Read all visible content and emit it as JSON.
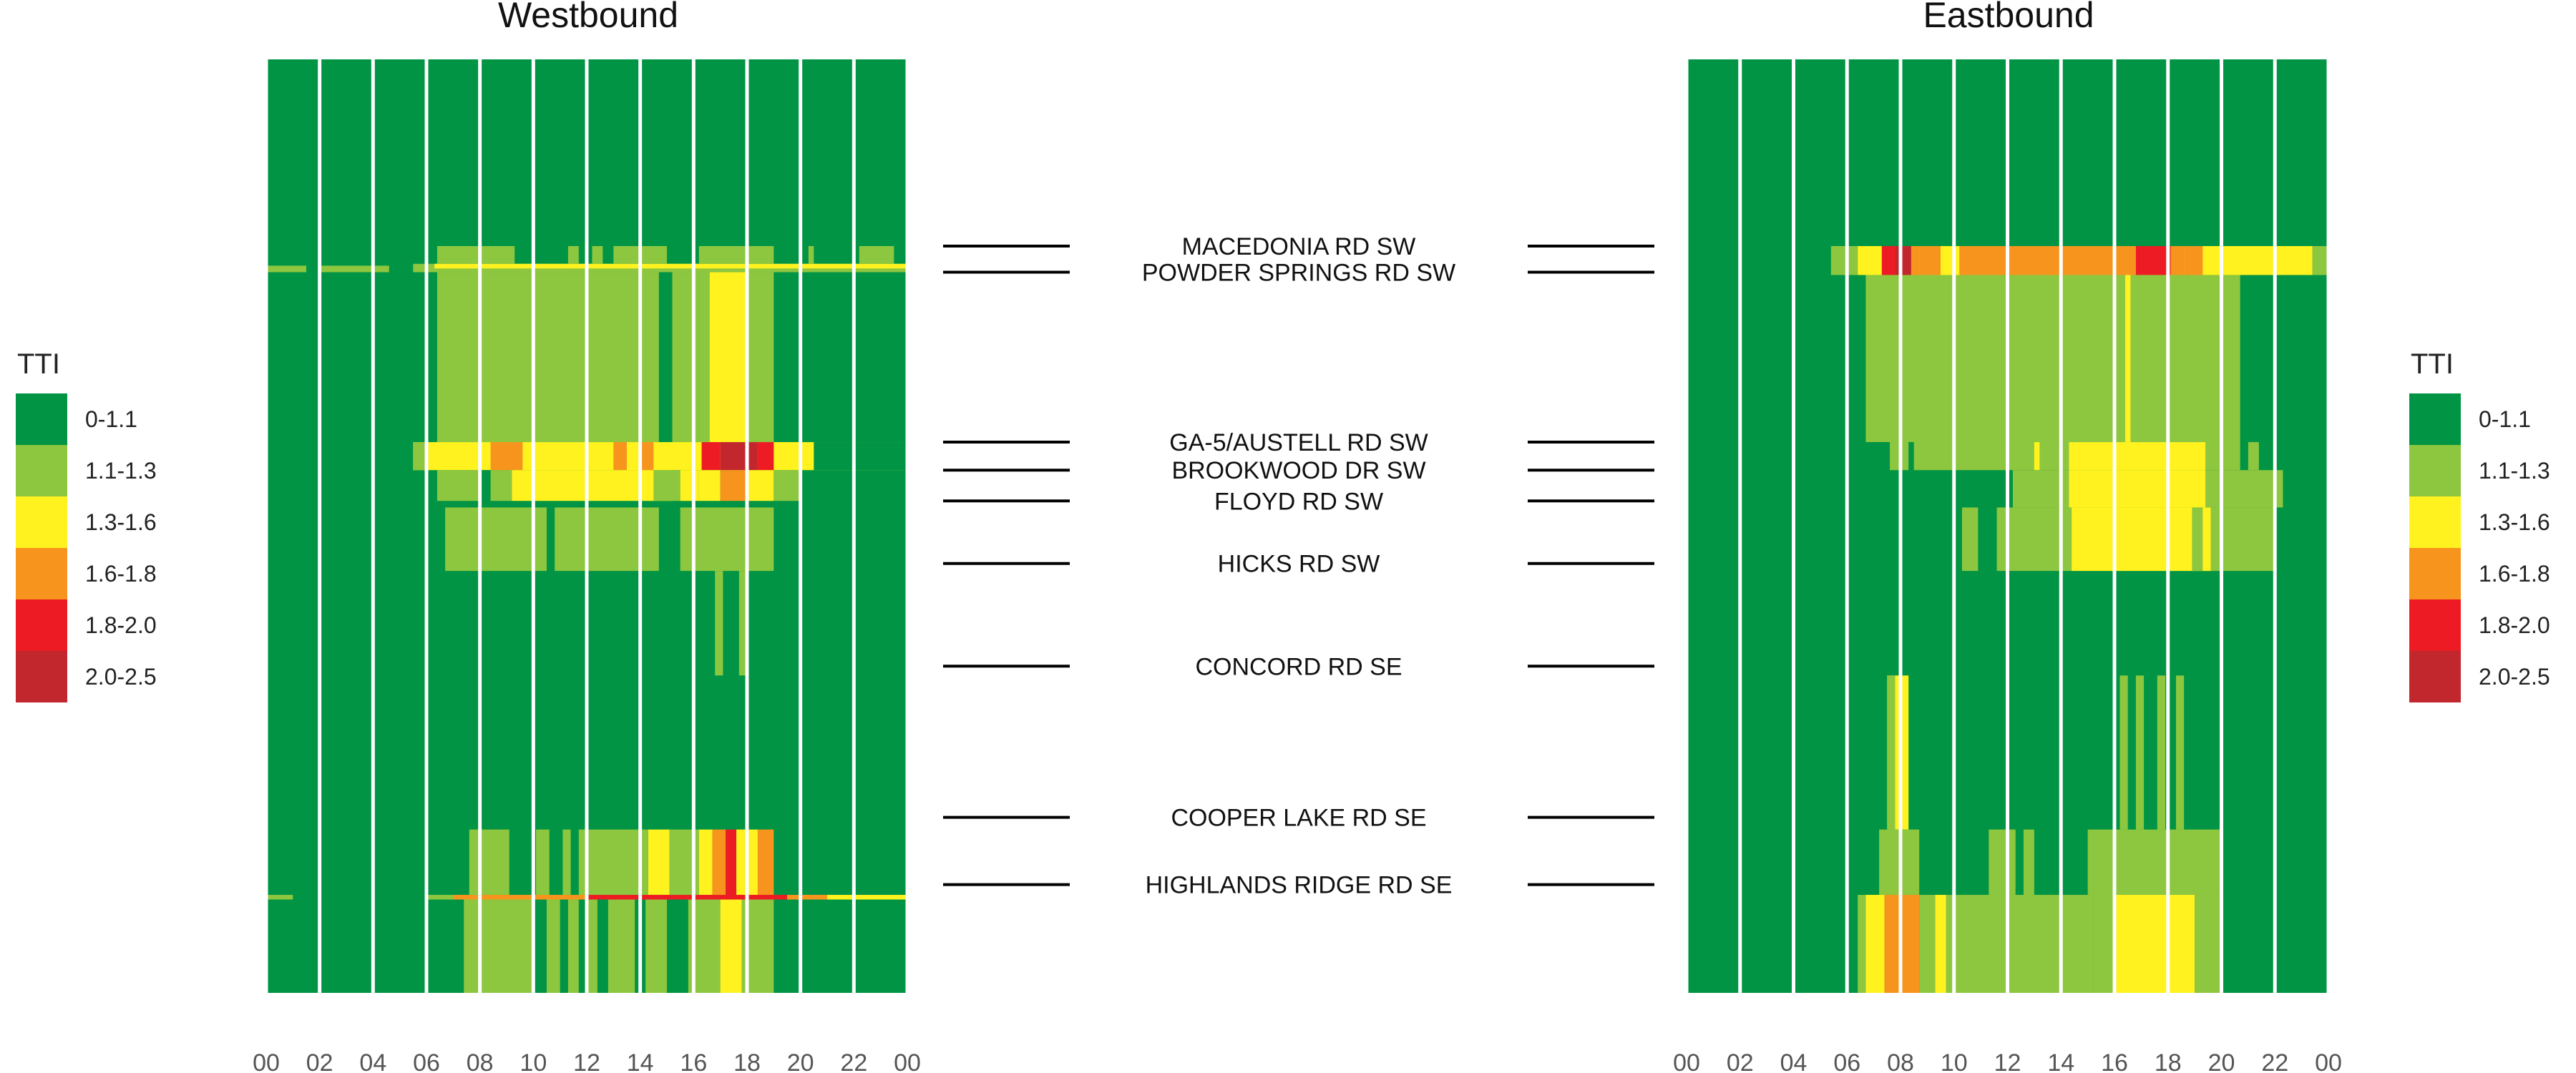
{
  "chart_data": {
    "type": "heatmap",
    "legend": {
      "title": "TTI",
      "classes": [
        {
          "label": "0-1.1",
          "color": "#009444"
        },
        {
          "label": "1.1-1.3",
          "color": "#8DC63F"
        },
        {
          "label": "1.3-1.6",
          "color": "#FFF21F"
        },
        {
          "label": "1.6-1.8",
          "color": "#F7941D"
        },
        {
          "label": "1.8-2.0",
          "color": "#ED1C24"
        },
        {
          "label": "2.0-2.5",
          "color": "#C1272D"
        }
      ]
    },
    "x_ticks": [
      "00",
      "02",
      "04",
      "06",
      "08",
      "10",
      "12",
      "14",
      "16",
      "18",
      "20",
      "22",
      "00"
    ],
    "x_range_hours": [
      0,
      24
    ],
    "roads": [
      "MACEDONIA RD SW",
      "POWDER SPRINGS RD SW",
      "GA-5/AUSTELL RD SW",
      "BROOKWOOD DR SW",
      "FLOYD RD SW",
      "HICKS RD SW",
      "CONCORD RD SE",
      "COOPER LAKE RD SE",
      "HIGHLANDS RIDGE RD SE"
    ],
    "panels": [
      {
        "title": "Westbound",
        "background_class": 0,
        "cells": [
          {
            "h0": 0,
            "h1": 1.5,
            "p0": 0.221,
            "p1": 0.228,
            "c": 1
          },
          {
            "h0": 2,
            "h1": 4.6,
            "p0": 0.221,
            "p1": 0.228,
            "c": 1
          },
          {
            "h0": 5.5,
            "h1": 24,
            "p0": 0.219,
            "p1": 0.228,
            "c": 1
          },
          {
            "h0": 6.3,
            "h1": 24,
            "p0": 0.219,
            "p1": 0.224,
            "c": 2
          },
          {
            "h0": 6.4,
            "h1": 8,
            "p0": 0.2,
            "p1": 0.219,
            "c": 1
          },
          {
            "h0": 8,
            "h1": 9.3,
            "p0": 0.2,
            "p1": 0.219,
            "c": 1
          },
          {
            "h0": 11.3,
            "h1": 11.7,
            "p0": 0.2,
            "p1": 0.219,
            "c": 1
          },
          {
            "h0": 12.2,
            "h1": 12.6,
            "p0": 0.2,
            "p1": 0.219,
            "c": 1
          },
          {
            "h0": 13,
            "h1": 15,
            "p0": 0.2,
            "p1": 0.219,
            "c": 1
          },
          {
            "h0": 16.2,
            "h1": 19,
            "p0": 0.2,
            "p1": 0.219,
            "c": 1
          },
          {
            "h0": 20.3,
            "h1": 20.5,
            "p0": 0.2,
            "p1": 0.219,
            "c": 1
          },
          {
            "h0": 22.2,
            "h1": 23.5,
            "p0": 0.2,
            "p1": 0.219,
            "c": 1
          },
          {
            "h0": 6.4,
            "h1": 14.7,
            "p0": 0.228,
            "p1": 0.41,
            "c": 1
          },
          {
            "h0": 15.2,
            "h1": 16.2,
            "p0": 0.228,
            "p1": 0.41,
            "c": 1
          },
          {
            "h0": 16.2,
            "h1": 16.6,
            "p0": 0.228,
            "p1": 0.41,
            "c": 1
          },
          {
            "h0": 16.6,
            "h1": 18,
            "p0": 0.228,
            "p1": 0.41,
            "c": 2
          },
          {
            "h0": 18,
            "h1": 19,
            "p0": 0.228,
            "p1": 0.41,
            "c": 1
          },
          {
            "h0": 5.5,
            "h1": 24,
            "p0": 0.41,
            "p1": 0.44,
            "c": 2
          },
          {
            "h0": 5.5,
            "h1": 6,
            "p0": 0.41,
            "p1": 0.44,
            "c": 1
          },
          {
            "h0": 8.4,
            "h1": 9.6,
            "p0": 0.41,
            "p1": 0.44,
            "c": 3
          },
          {
            "h0": 13,
            "h1": 13.5,
            "p0": 0.41,
            "p1": 0.44,
            "c": 3
          },
          {
            "h0": 13.5,
            "h1": 14,
            "p0": 0.41,
            "p1": 0.44,
            "c": 2
          },
          {
            "h0": 14,
            "h1": 14.5,
            "p0": 0.41,
            "p1": 0.44,
            "c": 3
          },
          {
            "h0": 16.3,
            "h1": 17,
            "p0": 0.41,
            "p1": 0.44,
            "c": 4
          },
          {
            "h0": 17,
            "h1": 18.4,
            "p0": 0.41,
            "p1": 0.44,
            "c": 5
          },
          {
            "h0": 18.4,
            "h1": 19,
            "p0": 0.41,
            "p1": 0.44,
            "c": 4
          },
          {
            "h0": 20.5,
            "h1": 24,
            "p0": 0.41,
            "p1": 0.44,
            "c": 0
          },
          {
            "h0": 6.4,
            "h1": 8,
            "p0": 0.44,
            "p1": 0.473,
            "c": 1
          },
          {
            "h0": 8,
            "h1": 8.4,
            "p0": 0.44,
            "p1": 0.473,
            "c": 0
          },
          {
            "h0": 8.4,
            "h1": 9.2,
            "p0": 0.44,
            "p1": 0.473,
            "c": 1
          },
          {
            "h0": 9.2,
            "h1": 15.2,
            "p0": 0.44,
            "p1": 0.473,
            "c": 2
          },
          {
            "h0": 14.5,
            "h1": 15.5,
            "p0": 0.44,
            "p1": 0.473,
            "c": 1
          },
          {
            "h0": 15.5,
            "h1": 16.2,
            "p0": 0.44,
            "p1": 0.473,
            "c": 2
          },
          {
            "h0": 16.2,
            "h1": 17,
            "p0": 0.44,
            "p1": 0.473,
            "c": 2
          },
          {
            "h0": 17,
            "h1": 18,
            "p0": 0.44,
            "p1": 0.473,
            "c": 3
          },
          {
            "h0": 18,
            "h1": 19,
            "p0": 0.44,
            "p1": 0.473,
            "c": 2
          },
          {
            "h0": 19,
            "h1": 20,
            "p0": 0.44,
            "p1": 0.473,
            "c": 1
          },
          {
            "h0": 6.7,
            "h1": 10.5,
            "p0": 0.48,
            "p1": 0.548,
            "c": 1
          },
          {
            "h0": 10.8,
            "h1": 14.7,
            "p0": 0.48,
            "p1": 0.548,
            "c": 1
          },
          {
            "h0": 15.5,
            "h1": 19,
            "p0": 0.48,
            "p1": 0.548,
            "c": 1
          },
          {
            "h0": 16.8,
            "h1": 17.1,
            "p0": 0.548,
            "p1": 0.66,
            "c": 1
          },
          {
            "h0": 17.7,
            "h1": 18,
            "p0": 0.548,
            "p1": 0.66,
            "c": 1
          },
          {
            "h0": 7.6,
            "h1": 9.1,
            "p0": 0.825,
            "p1": 0.895,
            "c": 1
          },
          {
            "h0": 10.1,
            "h1": 10.6,
            "p0": 0.825,
            "p1": 0.895,
            "c": 1
          },
          {
            "h0": 11.1,
            "h1": 11.4,
            "p0": 0.825,
            "p1": 0.895,
            "c": 1
          },
          {
            "h0": 11.7,
            "h1": 14.3,
            "p0": 0.825,
            "p1": 0.895,
            "c": 1
          },
          {
            "h0": 14.3,
            "h1": 15.1,
            "p0": 0.825,
            "p1": 0.895,
            "c": 2
          },
          {
            "h0": 15.1,
            "h1": 16.2,
            "p0": 0.825,
            "p1": 0.895,
            "c": 1
          },
          {
            "h0": 16.2,
            "h1": 16.7,
            "p0": 0.825,
            "p1": 0.895,
            "c": 2
          },
          {
            "h0": 16.7,
            "h1": 17.2,
            "p0": 0.825,
            "p1": 0.895,
            "c": 3
          },
          {
            "h0": 17.2,
            "h1": 17.6,
            "p0": 0.825,
            "p1": 0.895,
            "c": 4
          },
          {
            "h0": 17.6,
            "h1": 18.4,
            "p0": 0.825,
            "p1": 0.895,
            "c": 2
          },
          {
            "h0": 18.4,
            "h1": 19,
            "p0": 0.825,
            "p1": 0.895,
            "c": 3
          },
          {
            "h0": 0,
            "h1": 1,
            "p0": 0.895,
            "p1": 0.9,
            "c": 1
          },
          {
            "h0": 6,
            "h1": 24,
            "p0": 0.895,
            "p1": 0.9,
            "c": 1
          },
          {
            "h0": 7,
            "h1": 15,
            "p0": 0.895,
            "p1": 0.9,
            "c": 3
          },
          {
            "h0": 12,
            "h1": 19.5,
            "p0": 0.895,
            "p1": 0.9,
            "c": 4
          },
          {
            "h0": 19.5,
            "h1": 21,
            "p0": 0.895,
            "p1": 0.9,
            "c": 3
          },
          {
            "h0": 21,
            "h1": 24,
            "p0": 0.895,
            "p1": 0.9,
            "c": 2
          },
          {
            "h0": 7.4,
            "h1": 10,
            "p0": 0.9,
            "p1": 1.0,
            "c": 1
          },
          {
            "h0": 10.5,
            "h1": 11,
            "p0": 0.9,
            "p1": 1.0,
            "c": 1
          },
          {
            "h0": 11.3,
            "h1": 11.7,
            "p0": 0.9,
            "p1": 1.0,
            "c": 1
          },
          {
            "h0": 12,
            "h1": 12.4,
            "p0": 0.9,
            "p1": 1.0,
            "c": 1
          },
          {
            "h0": 12.8,
            "h1": 13.8,
            "p0": 0.9,
            "p1": 1.0,
            "c": 1
          },
          {
            "h0": 14.2,
            "h1": 15,
            "p0": 0.9,
            "p1": 1.0,
            "c": 1
          },
          {
            "h0": 15.8,
            "h1": 17,
            "p0": 0.9,
            "p1": 1.0,
            "c": 1
          },
          {
            "h0": 17,
            "h1": 17.8,
            "p0": 0.9,
            "p1": 1.0,
            "c": 2
          },
          {
            "h0": 17.8,
            "h1": 19,
            "p0": 0.9,
            "p1": 1.0,
            "c": 1
          }
        ]
      },
      {
        "title": "Eastbound",
        "background_class": 0,
        "cells": [
          {
            "h0": 5.4,
            "h1": 6.4,
            "p0": 0.2,
            "p1": 0.231,
            "c": 1
          },
          {
            "h0": 6.4,
            "h1": 23.4,
            "p0": 0.2,
            "p1": 0.231,
            "c": 2
          },
          {
            "h0": 7.3,
            "h1": 7.8,
            "p0": 0.2,
            "p1": 0.231,
            "c": 4
          },
          {
            "h0": 7.8,
            "h1": 8.4,
            "p0": 0.2,
            "p1": 0.231,
            "c": 5
          },
          {
            "h0": 8.4,
            "h1": 8.7,
            "p0": 0.2,
            "p1": 0.231,
            "c": 3
          },
          {
            "h0": 8.7,
            "h1": 9.5,
            "p0": 0.2,
            "p1": 0.231,
            "c": 3
          },
          {
            "h0": 9.5,
            "h1": 10.2,
            "p0": 0.2,
            "p1": 0.231,
            "c": 2
          },
          {
            "h0": 10.2,
            "h1": 16.8,
            "p0": 0.2,
            "p1": 0.231,
            "c": 3
          },
          {
            "h0": 16.8,
            "h1": 18.1,
            "p0": 0.2,
            "p1": 0.231,
            "c": 4
          },
          {
            "h0": 18.1,
            "h1": 18.6,
            "p0": 0.2,
            "p1": 0.231,
            "c": 3
          },
          {
            "h0": 18.6,
            "h1": 19.3,
            "p0": 0.2,
            "p1": 0.231,
            "c": 3
          },
          {
            "h0": 23.4,
            "h1": 24,
            "p0": 0.2,
            "p1": 0.231,
            "c": 1
          },
          {
            "h0": 6.7,
            "h1": 20.7,
            "p0": 0.231,
            "p1": 0.41,
            "c": 1
          },
          {
            "h0": 16.4,
            "h1": 16.6,
            "p0": 0.231,
            "p1": 0.41,
            "c": 2
          },
          {
            "h0": 6.7,
            "h1": 7.9,
            "p0": 0.41,
            "p1": 0.44,
            "c": 0
          },
          {
            "h0": 7.6,
            "h1": 8.3,
            "p0": 0.41,
            "p1": 0.44,
            "c": 1
          },
          {
            "h0": 8.5,
            "h1": 20.7,
            "p0": 0.41,
            "p1": 0.44,
            "c": 1
          },
          {
            "h0": 13,
            "h1": 13.2,
            "p0": 0.41,
            "p1": 0.44,
            "c": 2
          },
          {
            "h0": 14.3,
            "h1": 19.4,
            "p0": 0.41,
            "p1": 0.44,
            "c": 2
          },
          {
            "h0": 21,
            "h1": 21.4,
            "p0": 0.41,
            "p1": 0.44,
            "c": 1
          },
          {
            "h0": 12.2,
            "h1": 20,
            "p0": 0.44,
            "p1": 0.48,
            "c": 1
          },
          {
            "h0": 14.3,
            "h1": 19.4,
            "p0": 0.44,
            "p1": 0.48,
            "c": 2
          },
          {
            "h0": 20,
            "h1": 22.3,
            "p0": 0.44,
            "p1": 0.48,
            "c": 1
          },
          {
            "h0": 10.3,
            "h1": 10.9,
            "p0": 0.48,
            "p1": 0.548,
            "c": 1
          },
          {
            "h0": 11.6,
            "h1": 22,
            "p0": 0.48,
            "p1": 0.548,
            "c": 1
          },
          {
            "h0": 14.4,
            "h1": 19.6,
            "p0": 0.48,
            "p1": 0.548,
            "c": 2
          },
          {
            "h0": 18.9,
            "h1": 19.3,
            "p0": 0.48,
            "p1": 0.548,
            "c": 1
          },
          {
            "h0": 7.5,
            "h1": 8.3,
            "p0": 0.66,
            "p1": 0.825,
            "c": 2
          },
          {
            "h0": 7.5,
            "h1": 7.8,
            "p0": 0.66,
            "p1": 0.825,
            "c": 1
          },
          {
            "h0": 16.2,
            "h1": 16.5,
            "p0": 0.66,
            "p1": 0.825,
            "c": 1
          },
          {
            "h0": 16.8,
            "h1": 17.1,
            "p0": 0.66,
            "p1": 0.825,
            "c": 1
          },
          {
            "h0": 17.6,
            "h1": 17.9,
            "p0": 0.66,
            "p1": 0.825,
            "c": 1
          },
          {
            "h0": 18.3,
            "h1": 18.6,
            "p0": 0.66,
            "p1": 0.825,
            "c": 1
          },
          {
            "h0": 7.2,
            "h1": 8.7,
            "p0": 0.825,
            "p1": 0.895,
            "c": 1
          },
          {
            "h0": 11.3,
            "h1": 12.3,
            "p0": 0.825,
            "p1": 0.895,
            "c": 1
          },
          {
            "h0": 12.6,
            "h1": 13,
            "p0": 0.825,
            "p1": 0.895,
            "c": 1
          },
          {
            "h0": 15,
            "h1": 20,
            "p0": 0.825,
            "p1": 0.895,
            "c": 1
          },
          {
            "h0": 6.4,
            "h1": 6.7,
            "p0": 0.895,
            "p1": 1.0,
            "c": 1
          },
          {
            "h0": 6.7,
            "h1": 7.4,
            "p0": 0.895,
            "p1": 1.0,
            "c": 2
          },
          {
            "h0": 7.4,
            "h1": 8.7,
            "p0": 0.895,
            "p1": 1.0,
            "c": 3
          },
          {
            "h0": 8.7,
            "h1": 15.2,
            "p0": 0.895,
            "p1": 1.0,
            "c": 1
          },
          {
            "h0": 9.3,
            "h1": 9.7,
            "p0": 0.895,
            "p1": 1.0,
            "c": 2
          },
          {
            "h0": 15.2,
            "h1": 16,
            "p0": 0.895,
            "p1": 1.0,
            "c": 1
          },
          {
            "h0": 16,
            "h1": 19,
            "p0": 0.895,
            "p1": 1.0,
            "c": 2
          },
          {
            "h0": 19,
            "h1": 20,
            "p0": 0.895,
            "p1": 1.0,
            "c": 1
          }
        ]
      }
    ]
  }
}
